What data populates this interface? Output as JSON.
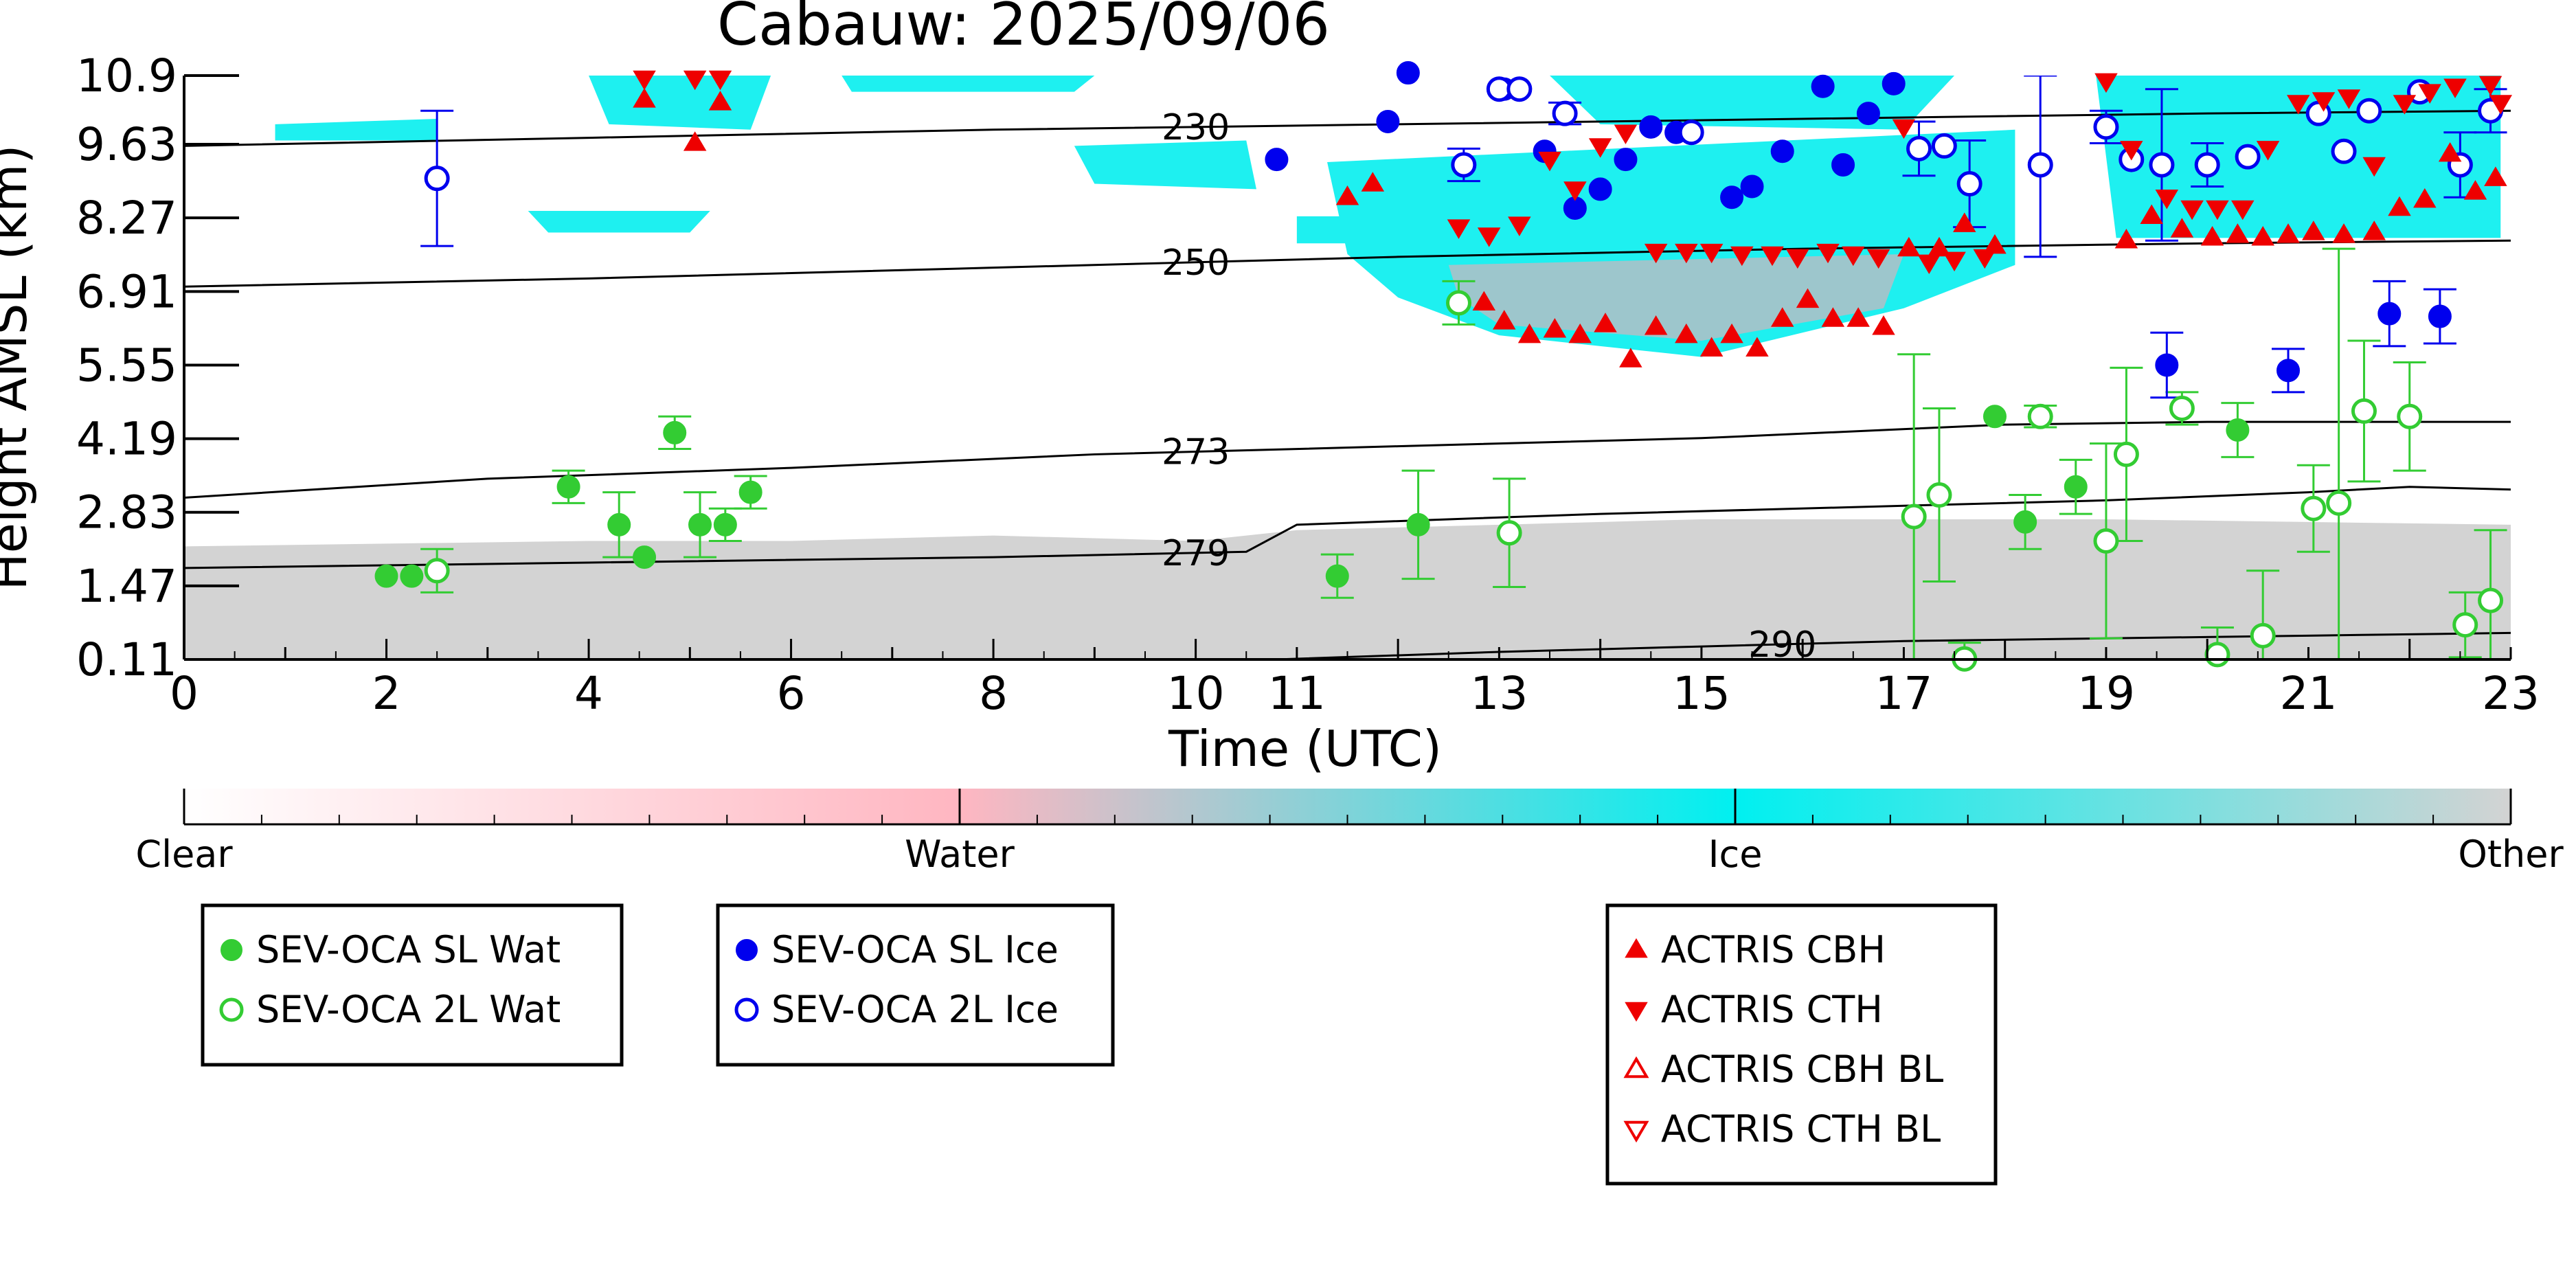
{
  "chart_data": {
    "type": "scatter",
    "title": "Cabauw: 2025/09/06",
    "xlabel": "Time (UTC)",
    "ylabel": "Height AMSL (km)",
    "xlim": [
      0,
      23
    ],
    "ylim": [
      0.11,
      10.9
    ],
    "x_ticks": [
      "0",
      "2",
      "4",
      "6",
      "8",
      "10",
      "11",
      "13",
      "15",
      "17",
      "19",
      "21",
      "23"
    ],
    "y_ticks": [
      "10.9",
      "9.63",
      "8.27",
      "6.91",
      "5.55",
      "4.19",
      "2.83",
      "1.47",
      "0.11"
    ],
    "colorbar": {
      "labels": [
        "Clear",
        "Water",
        "Ice",
        "Other"
      ],
      "colors": [
        "#ffffff",
        "#ffb6c1",
        "#00f0f0",
        "#d3d3d3"
      ]
    },
    "isotherms": [
      {
        "label": "230",
        "x": [
          0,
          4,
          8,
          12,
          16,
          20,
          23
        ],
        "y": [
          9.6,
          9.75,
          9.9,
          10.0,
          10.1,
          10.2,
          10.25
        ]
      },
      {
        "label": "250",
        "x": [
          0,
          4,
          8,
          12,
          16,
          20,
          23
        ],
        "y": [
          7.0,
          7.15,
          7.35,
          7.55,
          7.7,
          7.8,
          7.85
        ]
      },
      {
        "label": "273",
        "x": [
          0,
          3,
          6,
          9,
          12,
          15,
          18,
          20,
          23
        ],
        "y": [
          3.1,
          3.45,
          3.65,
          3.9,
          4.05,
          4.2,
          4.45,
          4.5,
          4.5
        ]
      },
      {
        "label": "279",
        "x": [
          0,
          4,
          8,
          10.5,
          11,
          14,
          17,
          19,
          21,
          22,
          23
        ],
        "y": [
          1.8,
          1.9,
          2.0,
          2.1,
          2.6,
          2.8,
          2.95,
          3.05,
          3.2,
          3.3,
          3.25
        ]
      },
      {
        "label": "290",
        "x": [
          10.8,
          13,
          15,
          17,
          19,
          21,
          23
        ],
        "y": [
          0.11,
          0.25,
          0.35,
          0.45,
          0.5,
          0.55,
          0.6
        ]
      }
    ],
    "series": [
      {
        "name": "SEV-OCA SL Wat",
        "color": "#33cc33",
        "filled": true,
        "marker": "circle",
        "points": [
          {
            "x": 2.0,
            "y": 1.65
          },
          {
            "x": 2.25,
            "y": 1.65
          },
          {
            "x": 3.8,
            "y": 3.3,
            "err": 0.3
          },
          {
            "x": 4.3,
            "y": 2.6,
            "err": 0.6
          },
          {
            "x": 4.55,
            "y": 2.0
          },
          {
            "x": 4.85,
            "y": 4.3,
            "err": 0.3
          },
          {
            "x": 5.1,
            "y": 2.6,
            "err": 0.6
          },
          {
            "x": 5.35,
            "y": 2.6,
            "err": 0.3
          },
          {
            "x": 5.6,
            "y": 3.2,
            "err": 0.3
          },
          {
            "x": 11.4,
            "y": 1.65,
            "err": 0.4
          },
          {
            "x": 12.2,
            "y": 2.6,
            "err": 1.0
          },
          {
            "x": 18.2,
            "y": 2.65,
            "err": 0.5
          },
          {
            "x": 17.9,
            "y": 4.6
          },
          {
            "x": 18.7,
            "y": 3.3,
            "err": 0.5
          },
          {
            "x": 20.3,
            "y": 4.35,
            "err": 0.5
          }
        ]
      },
      {
        "name": "SEV-OCA 2L Wat",
        "color": "#33cc33",
        "filled": false,
        "marker": "circle",
        "points": [
          {
            "x": 2.5,
            "y": 1.75,
            "err": 0.4
          },
          {
            "x": 12.6,
            "y": 6.7,
            "err": 0.4
          },
          {
            "x": 13.1,
            "y": 2.45,
            "err": 1.0
          },
          {
            "x": 17.1,
            "y": 2.75,
            "err": 3.0
          },
          {
            "x": 17.35,
            "y": 3.15,
            "err": 1.6
          },
          {
            "x": 17.6,
            "y": 0.12,
            "err": 0.3
          },
          {
            "x": 18.35,
            "y": 4.6,
            "err": 0.2
          },
          {
            "x": 19.0,
            "y": 2.3,
            "err": 1.8
          },
          {
            "x": 19.2,
            "y": 3.9,
            "err": 1.6
          },
          {
            "x": 19.75,
            "y": 4.75,
            "err": 0.3
          },
          {
            "x": 20.1,
            "y": 0.2,
            "err": 0.5
          },
          {
            "x": 20.55,
            "y": 0.55,
            "err": 1.2
          },
          {
            "x": 21.05,
            "y": 2.9,
            "err": 0.8
          },
          {
            "x": 21.3,
            "y": 3.0,
            "err": 4.7
          },
          {
            "x": 21.55,
            "y": 4.7,
            "err": 1.3
          },
          {
            "x": 22.0,
            "y": 4.6,
            "err": 1.0
          },
          {
            "x": 22.55,
            "y": 0.75,
            "err": 0.6
          },
          {
            "x": 22.8,
            "y": 1.2,
            "err": 1.3
          }
        ]
      },
      {
        "name": "SEV-OCA SL Ice",
        "color": "#0000ee",
        "filled": true,
        "marker": "circle",
        "points": [
          {
            "x": 10.8,
            "y": 9.35
          },
          {
            "x": 11.9,
            "y": 10.05
          },
          {
            "x": 12.1,
            "y": 10.95
          },
          {
            "x": 13.05,
            "y": 10.65
          },
          {
            "x": 13.45,
            "y": 9.5
          },
          {
            "x": 13.75,
            "y": 8.45
          },
          {
            "x": 14.0,
            "y": 8.8
          },
          {
            "x": 14.25,
            "y": 9.35
          },
          {
            "x": 14.5,
            "y": 9.95
          },
          {
            "x": 14.75,
            "y": 9.85
          },
          {
            "x": 15.3,
            "y": 8.65
          },
          {
            "x": 15.5,
            "y": 8.85
          },
          {
            "x": 15.8,
            "y": 9.5
          },
          {
            "x": 16.2,
            "y": 10.7
          },
          {
            "x": 16.4,
            "y": 9.25
          },
          {
            "x": 16.65,
            "y": 10.2
          },
          {
            "x": 16.9,
            "y": 10.75
          },
          {
            "x": 19.6,
            "y": 5.55,
            "err": 0.6
          },
          {
            "x": 20.8,
            "y": 5.45,
            "err": 0.4
          },
          {
            "x": 21.8,
            "y": 6.5,
            "err": 0.6
          },
          {
            "x": 22.3,
            "y": 6.45,
            "err": 0.5
          }
        ]
      },
      {
        "name": "SEV-OCA 2L Ice",
        "color": "#0000ee",
        "filled": false,
        "marker": "circle",
        "points": [
          {
            "x": 2.5,
            "y": 9.0,
            "err": 1.25
          },
          {
            "x": 12.65,
            "y": 9.25,
            "err": 0.3
          },
          {
            "x": 13.0,
            "y": 10.65
          },
          {
            "x": 13.2,
            "y": 10.65
          },
          {
            "x": 13.65,
            "y": 10.2,
            "err": 0.2
          },
          {
            "x": 14.9,
            "y": 9.85
          },
          {
            "x": 17.15,
            "y": 9.55,
            "err": 0.5
          },
          {
            "x": 17.4,
            "y": 9.6
          },
          {
            "x": 17.65,
            "y": 8.9,
            "err": 0.8
          },
          {
            "x": 18.35,
            "y": 9.25,
            "err": 1.7
          },
          {
            "x": 19.0,
            "y": 9.95,
            "err": 0.3
          },
          {
            "x": 19.25,
            "y": 9.35
          },
          {
            "x": 19.55,
            "y": 9.25,
            "err": 1.4
          },
          {
            "x": 20.0,
            "y": 9.25,
            "err": 0.4
          },
          {
            "x": 20.4,
            "y": 9.4
          },
          {
            "x": 21.1,
            "y": 10.2
          },
          {
            "x": 21.35,
            "y": 9.5
          },
          {
            "x": 21.6,
            "y": 10.25
          },
          {
            "x": 22.1,
            "y": 10.6
          },
          {
            "x": 22.5,
            "y": 9.25,
            "err": 0.6
          },
          {
            "x": 22.8,
            "y": 10.25,
            "err": 0.4
          }
        ]
      },
      {
        "name": "ACTRIS CBH",
        "color": "#ee0000",
        "filled": true,
        "marker": "triangle-up",
        "points": [
          {
            "x": 4.55,
            "y": 10.45
          },
          {
            "x": 5.05,
            "y": 9.65
          },
          {
            "x": 5.3,
            "y": 10.4
          },
          {
            "x": 11.5,
            "y": 8.65
          },
          {
            "x": 11.75,
            "y": 8.9
          },
          {
            "x": 12.85,
            "y": 6.7
          },
          {
            "x": 13.05,
            "y": 6.35
          },
          {
            "x": 13.3,
            "y": 6.1
          },
          {
            "x": 13.55,
            "y": 6.2
          },
          {
            "x": 13.8,
            "y": 6.1
          },
          {
            "x": 14.05,
            "y": 6.3
          },
          {
            "x": 14.3,
            "y": 5.65
          },
          {
            "x": 14.55,
            "y": 6.25
          },
          {
            "x": 14.85,
            "y": 6.1
          },
          {
            "x": 15.1,
            "y": 5.85
          },
          {
            "x": 15.3,
            "y": 6.1
          },
          {
            "x": 15.55,
            "y": 5.85
          },
          {
            "x": 15.8,
            "y": 6.4
          },
          {
            "x": 16.05,
            "y": 6.75
          },
          {
            "x": 16.3,
            "y": 6.4
          },
          {
            "x": 16.55,
            "y": 6.4
          },
          {
            "x": 16.8,
            "y": 6.25
          },
          {
            "x": 17.05,
            "y": 7.7
          },
          {
            "x": 17.35,
            "y": 7.7
          },
          {
            "x": 17.6,
            "y": 8.15
          },
          {
            "x": 17.9,
            "y": 7.75
          },
          {
            "x": 19.2,
            "y": 7.85
          },
          {
            "x": 19.45,
            "y": 8.3
          },
          {
            "x": 19.75,
            "y": 8.05
          },
          {
            "x": 20.05,
            "y": 7.9
          },
          {
            "x": 20.3,
            "y": 7.95
          },
          {
            "x": 20.55,
            "y": 7.9
          },
          {
            "x": 20.8,
            "y": 7.95
          },
          {
            "x": 21.05,
            "y": 8.0
          },
          {
            "x": 21.35,
            "y": 7.95
          },
          {
            "x": 21.65,
            "y": 8.0
          },
          {
            "x": 21.9,
            "y": 8.45
          },
          {
            "x": 22.15,
            "y": 8.6
          },
          {
            "x": 22.4,
            "y": 9.45
          },
          {
            "x": 22.65,
            "y": 8.75
          },
          {
            "x": 22.85,
            "y": 9.0
          }
        ]
      },
      {
        "name": "ACTRIS CTH",
        "color": "#ee0000",
        "filled": true,
        "marker": "triangle-down",
        "points": [
          {
            "x": 4.55,
            "y": 10.85
          },
          {
            "x": 5.05,
            "y": 10.85
          },
          {
            "x": 5.3,
            "y": 10.85
          },
          {
            "x": 12.6,
            "y": 8.1
          },
          {
            "x": 12.9,
            "y": 7.95
          },
          {
            "x": 13.2,
            "y": 8.15
          },
          {
            "x": 13.5,
            "y": 9.35
          },
          {
            "x": 13.75,
            "y": 8.8
          },
          {
            "x": 14.0,
            "y": 9.6
          },
          {
            "x": 14.25,
            "y": 9.85
          },
          {
            "x": 14.55,
            "y": 7.65
          },
          {
            "x": 14.85,
            "y": 7.65
          },
          {
            "x": 15.1,
            "y": 7.65
          },
          {
            "x": 15.4,
            "y": 7.6
          },
          {
            "x": 15.7,
            "y": 7.6
          },
          {
            "x": 15.95,
            "y": 7.55
          },
          {
            "x": 16.25,
            "y": 7.65
          },
          {
            "x": 16.5,
            "y": 7.6
          },
          {
            "x": 16.75,
            "y": 7.55
          },
          {
            "x": 17.0,
            "y": 9.95
          },
          {
            "x": 17.25,
            "y": 7.45
          },
          {
            "x": 17.5,
            "y": 7.5
          },
          {
            "x": 17.8,
            "y": 7.55
          },
          {
            "x": 19.0,
            "y": 10.8
          },
          {
            "x": 19.25,
            "y": 9.55
          },
          {
            "x": 19.6,
            "y": 8.65
          },
          {
            "x": 19.85,
            "y": 8.45
          },
          {
            "x": 20.1,
            "y": 8.45
          },
          {
            "x": 20.35,
            "y": 8.45
          },
          {
            "x": 20.6,
            "y": 9.55
          },
          {
            "x": 20.9,
            "y": 10.4
          },
          {
            "x": 21.15,
            "y": 10.45
          },
          {
            "x": 21.4,
            "y": 10.5
          },
          {
            "x": 21.65,
            "y": 9.25
          },
          {
            "x": 21.95,
            "y": 10.4
          },
          {
            "x": 22.2,
            "y": 10.6
          },
          {
            "x": 22.45,
            "y": 10.7
          },
          {
            "x": 22.8,
            "y": 10.75
          },
          {
            "x": 22.9,
            "y": 10.4
          }
        ]
      },
      {
        "name": "ACTRIS CBH BL",
        "color": "#ee0000",
        "filled": false,
        "marker": "triangle-up",
        "points": []
      },
      {
        "name": "ACTRIS CTH BL",
        "color": "#ee0000",
        "filled": false,
        "marker": "triangle-down",
        "points": []
      }
    ],
    "legend_groups": [
      {
        "entries": [
          "SEV-OCA SL Wat",
          "SEV-OCA 2L Wat"
        ]
      },
      {
        "entries": [
          "SEV-OCA SL Ice",
          "SEV-OCA 2L Ice"
        ]
      },
      {
        "entries": [
          "ACTRIS CBH",
          "ACTRIS CTH",
          "ACTRIS CBH BL",
          "ACTRIS CTH BL"
        ]
      }
    ],
    "legend_placement": "bottom"
  }
}
